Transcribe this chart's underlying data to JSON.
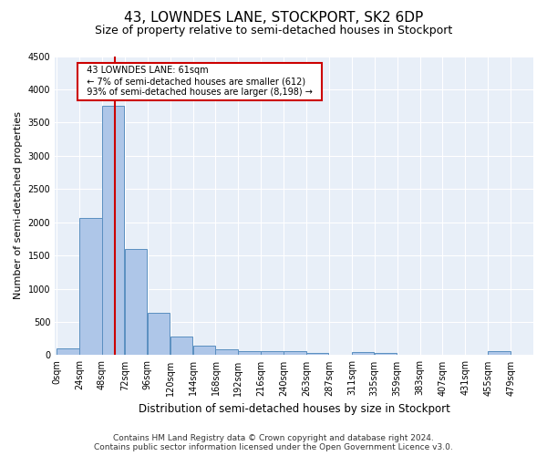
{
  "title": "43, LOWNDES LANE, STOCKPORT, SK2 6DP",
  "subtitle": "Size of property relative to semi-detached houses in Stockport",
  "xlabel": "Distribution of semi-detached houses by size in Stockport",
  "ylabel": "Number of semi-detached properties",
  "footer_line1": "Contains HM Land Registry data © Crown copyright and database right 2024.",
  "footer_line2": "Contains public sector information licensed under the Open Government Licence v3.0.",
  "bin_labels": [
    "0sqm",
    "24sqm",
    "48sqm",
    "72sqm",
    "96sqm",
    "120sqm",
    "144sqm",
    "168sqm",
    "192sqm",
    "216sqm",
    "240sqm",
    "263sqm",
    "287sqm",
    "311sqm",
    "335sqm",
    "359sqm",
    "383sqm",
    "407sqm",
    "431sqm",
    "455sqm",
    "479sqm"
  ],
  "bar_values": [
    100,
    2060,
    3750,
    1600,
    635,
    280,
    140,
    95,
    65,
    60,
    55,
    35,
    0,
    50,
    30,
    0,
    0,
    0,
    0,
    55,
    0
  ],
  "bar_color": "#aec6e8",
  "bar_edge_color": "#5a8fc0",
  "property_line_x": 61,
  "property_line_label": "43 LOWNDES LANE: 61sqm",
  "annotation_smaller": "← 7% of semi-detached houses are smaller (612)",
  "annotation_larger": "93% of semi-detached houses are larger (8,198) →",
  "annotation_box_color": "#ffffff",
  "annotation_box_edge": "#cc0000",
  "vline_color": "#cc0000",
  "ylim": [
    0,
    4500
  ],
  "yticks": [
    0,
    500,
    1000,
    1500,
    2000,
    2500,
    3000,
    3500,
    4000,
    4500
  ],
  "bin_width": 24,
  "background_color": "#e8eff8",
  "grid_color": "#ffffff",
  "title_fontsize": 11,
  "subtitle_fontsize": 9,
  "axis_label_fontsize": 8,
  "tick_fontsize": 7,
  "footer_fontsize": 6.5,
  "annotation_fontsize": 7
}
